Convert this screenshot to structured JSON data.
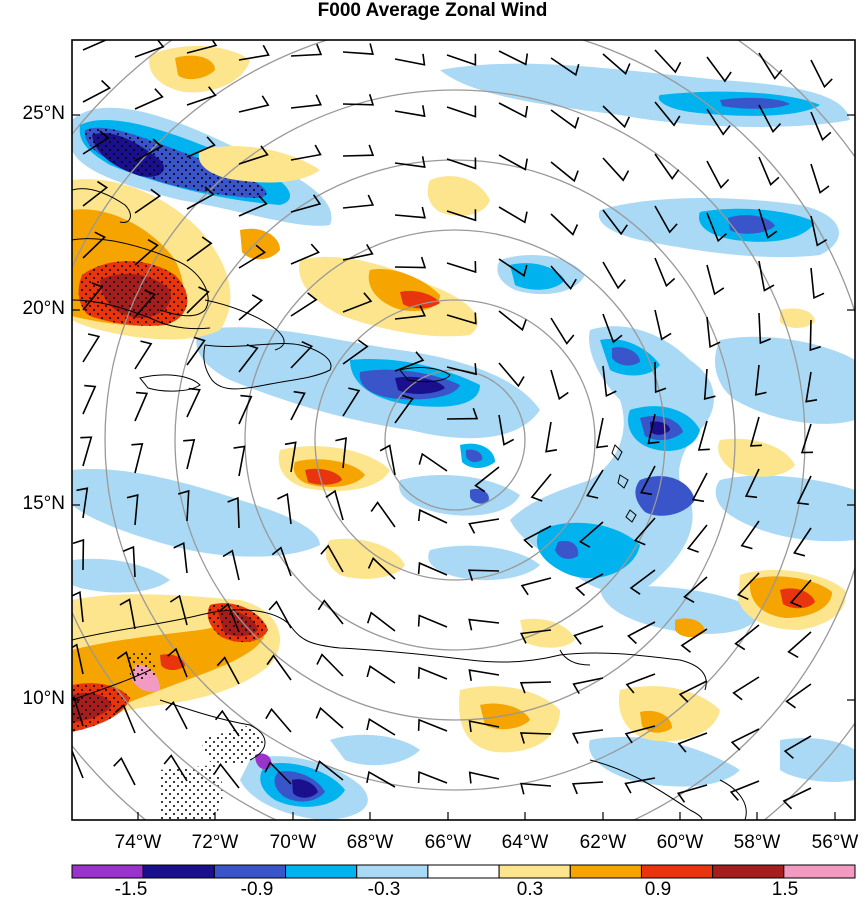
{
  "title": "F000 Average Zonal Wind",
  "lat_labels": [
    "25°N",
    "20°N",
    "15°N",
    "10°N"
  ],
  "lon_labels": [
    "74°W",
    "72°W",
    "70°W",
    "68°W",
    "66°W",
    "64°W",
    "62°W",
    "60°W",
    "58°W",
    "56°W"
  ],
  "colorbar": {
    "colors": [
      "#9933cc",
      "#1a0f8c",
      "#3a54c9",
      "#00b3ef",
      "#a9d9f5",
      "#ffffff",
      "#fce58c",
      "#f5a400",
      "#e8350d",
      "#a51d1d",
      "#f29ac2"
    ],
    "labels": [
      "-1.5",
      "-0.9",
      "-0.3",
      "0.3",
      "0.9",
      "1.5"
    ]
  },
  "colors": {
    "land_outline": "#000000",
    "range_rings": "#999999",
    "wind_barbs": "#000000"
  }
}
